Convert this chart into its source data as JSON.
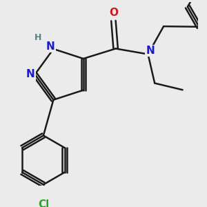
{
  "bg_color": "#ebebeb",
  "bond_color": "#1a1a1a",
  "bond_width": 1.8,
  "dbo": 0.045,
  "atom_colors": {
    "N": "#1a1acc",
    "O": "#cc1a1a",
    "Cl": "#22aa22",
    "H": "#4a8888",
    "C": "#1a1a1a"
  },
  "font_size_atom": 11,
  "font_size_H": 9,
  "font_size_Cl": 11
}
